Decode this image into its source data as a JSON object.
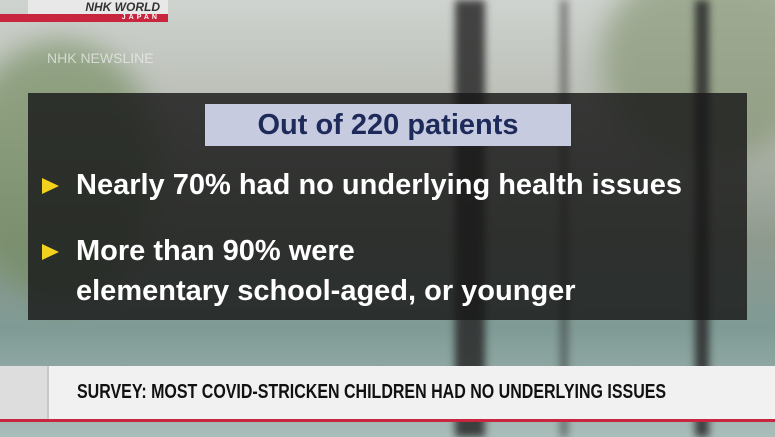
{
  "logo": {
    "brand": "NHK WORLD",
    "sub": "JAPAN",
    "program": "NHK NEWSLINE"
  },
  "graphic": {
    "title": "Out of 220 patients",
    "bullets": [
      {
        "lines": [
          "Nearly 70% had no underlying health issues"
        ]
      },
      {
        "lines": [
          "More than 90% were",
          "elementary school-aged, or younger"
        ]
      }
    ]
  },
  "lower_third": {
    "headline": "SURVEY: MOST COVID-STRICKEN CHILDREN HAD NO UNDERLYING ISSUES"
  },
  "colors": {
    "accent": "#c8253f",
    "bullet": "#f1d21e",
    "title_bg": "#c7cbe0"
  }
}
